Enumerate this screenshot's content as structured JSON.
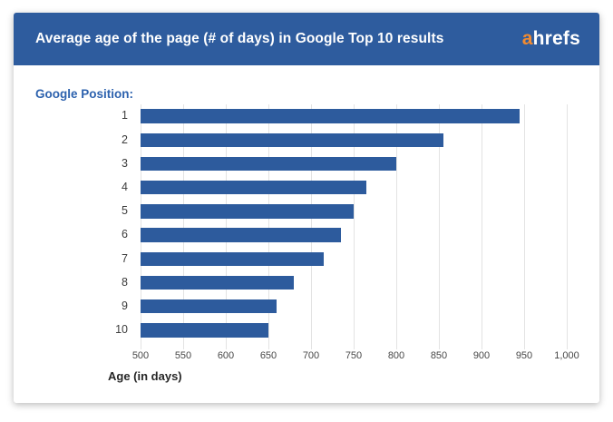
{
  "header": {
    "title": "Average age of the page (# of days) in Google Top 10 results",
    "logo": {
      "accent": "a",
      "rest": "hrefs"
    }
  },
  "colors": {
    "header_bg": "#2e5c9e",
    "bar": "#2d5b9d",
    "logo_accent": "#f28b30",
    "group_label": "#2d62ae",
    "gridline": "#e3e3e3"
  },
  "chart_data": {
    "type": "bar",
    "orientation": "horizontal",
    "title": "Average age of the page (# of days) in Google Top 10 results",
    "group_label": "Google Position:",
    "categories": [
      "1",
      "2",
      "3",
      "4",
      "5",
      "6",
      "7",
      "8",
      "9",
      "10"
    ],
    "values": [
      945,
      855,
      800,
      765,
      750,
      735,
      715,
      680,
      660,
      650
    ],
    "xlabel": "Age (in days)",
    "ylabel": "Google Position",
    "xlim": [
      500,
      1000
    ],
    "xticks": [
      500,
      550,
      600,
      650,
      700,
      750,
      800,
      850,
      900,
      950,
      1000
    ],
    "xtick_labels": [
      "500",
      "550",
      "600",
      "650",
      "700",
      "750",
      "800",
      "850",
      "900",
      "950",
      "1,000"
    ],
    "grid": true,
    "legend": "none"
  }
}
